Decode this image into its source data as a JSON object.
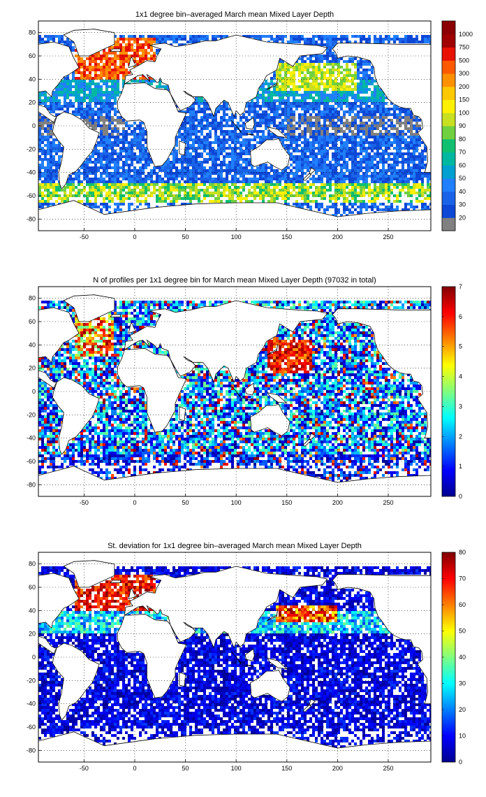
{
  "figure": {
    "panels": [
      {
        "title": "1x1 degree bin–averaged March mean Mixed Layer Depth",
        "colorbar": {
          "type": "categorical",
          "labels": [
            "20",
            "30",
            "40",
            "50",
            "60",
            "70",
            "80",
            "90",
            "100",
            "150",
            "200",
            "300",
            "500",
            "750",
            "1000"
          ],
          "colors": [
            "#808080",
            "#0d47d6",
            "#1a63e8",
            "#2080ff",
            "#00a0d0",
            "#00b8a0",
            "#10c070",
            "#70d040",
            "#c8e020",
            "#fff000",
            "#ffc800",
            "#ff9000",
            "#ff5a00",
            "#e81000",
            "#a00000",
            "#8b0000"
          ]
        }
      },
      {
        "title": "N of profiles per 1x1 degree bin for March mean Mixed Layer Depth  (97032 in total)",
        "colorbar": {
          "type": "continuous",
          "min": 0,
          "max": 7,
          "labels": [
            "0",
            "1",
            "2",
            "3",
            "4",
            "5",
            "6",
            "7"
          ]
        }
      },
      {
        "title": "St. deviation for 1x1 degree bin–averaged March mean Mixed Layer Depth",
        "colorbar": {
          "type": "continuous",
          "min": 0,
          "max": 80,
          "labels": [
            "0",
            "10",
            "20",
            "30",
            "40",
            "50",
            "60",
            "70",
            "80"
          ]
        }
      }
    ]
  },
  "chart_data": [
    {
      "type": "heatmap",
      "title": "1x1 degree bin–averaged March mean Mixed Layer Depth",
      "xlabel": "",
      "ylabel": "",
      "xlim": [
        -95,
        292
      ],
      "ylim": [
        -90,
        90
      ],
      "xticks": [
        -50,
        0,
        50,
        100,
        150,
        200,
        250
      ],
      "yticks": [
        80,
        60,
        40,
        20,
        0,
        -20,
        -40,
        -60,
        -80
      ],
      "grid": true,
      "colorbar_ticks": [
        "20",
        "30",
        "40",
        "50",
        "60",
        "70",
        "80",
        "90",
        "100",
        "150",
        "200",
        "300",
        "500",
        "750",
        "1000"
      ],
      "units_note": ""
    },
    {
      "type": "heatmap",
      "title": "N of profiles per 1x1 degree bin for March mean Mixed Layer Depth  (97032 in total)",
      "xlabel": "",
      "ylabel": "",
      "xlim": [
        -95,
        292
      ],
      "ylim": [
        -90,
        90
      ],
      "xticks": [
        -50,
        0,
        50,
        100,
        150,
        200,
        250
      ],
      "yticks": [
        80,
        60,
        40,
        20,
        0,
        -20,
        -40,
        -60,
        -80
      ],
      "grid": true,
      "colorbar_range": [
        0,
        7
      ],
      "colorbar_ticks": [
        0,
        1,
        2,
        3,
        4,
        5,
        6,
        7
      ],
      "total_profiles": 97032
    },
    {
      "type": "heatmap",
      "title": "St. deviation for 1x1 degree bin–averaged March mean Mixed Layer Depth",
      "xlabel": "",
      "ylabel": "",
      "xlim": [
        -95,
        292
      ],
      "ylim": [
        -90,
        90
      ],
      "xticks": [
        -50,
        0,
        50,
        100,
        150,
        200,
        250
      ],
      "yticks": [
        80,
        60,
        40,
        20,
        0,
        -20,
        -40,
        -60,
        -80
      ],
      "grid": true,
      "colorbar_range": [
        0,
        80
      ],
      "colorbar_ticks": [
        0,
        10,
        20,
        30,
        40,
        50,
        60,
        70,
        80
      ]
    }
  ]
}
